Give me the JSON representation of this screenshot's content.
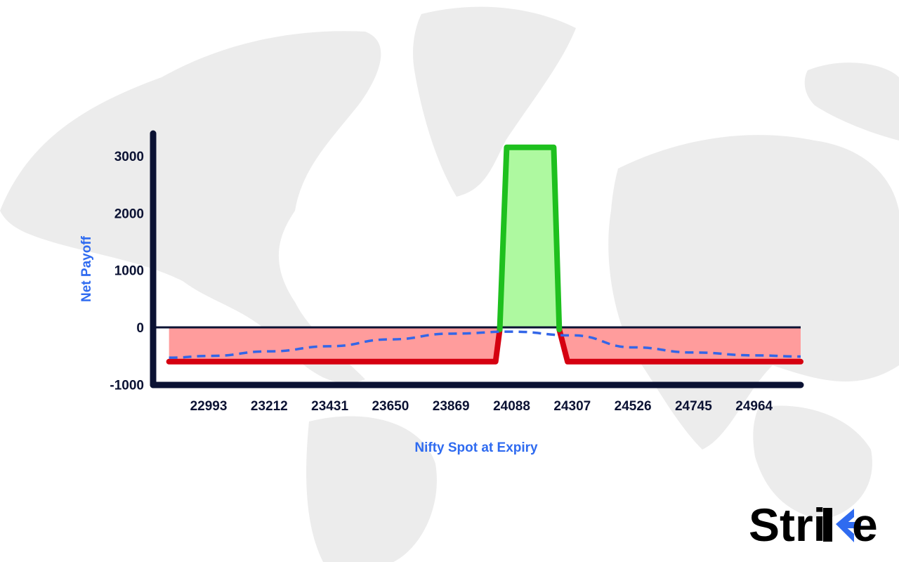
{
  "chart_data": {
    "type": "line",
    "title": "",
    "xlabel": "Nifty Spot at Expiry",
    "ylabel": "Net Payoff",
    "x_ticks": [
      22993,
      23212,
      23431,
      23650,
      23869,
      24088,
      24307,
      24526,
      24745,
      24964
    ],
    "y_ticks": [
      3000,
      2000,
      1000,
      0,
      -1000
    ],
    "xlim": [
      22850,
      25250
    ],
    "ylim": [
      -1000,
      3300
    ],
    "grid": false,
    "legend": "none",
    "series": [
      {
        "style": "solid",
        "colors": {
          "profit_line": "#1ec01e",
          "profit_fill": "#aef9a0",
          "loss_line": "#d50010",
          "loss_fill": "#ff9c9c"
        },
        "x": [
          22850,
          24030,
          24045,
          24070,
          24240,
          24260,
          24290,
          25250
        ],
        "y": [
          -600,
          -600,
          -100,
          3150,
          3150,
          0,
          -600,
          -600
        ]
      },
      {
        "style": "dashed",
        "color": "#3366e8",
        "x": [
          22850,
          23000,
          23212,
          23431,
          23650,
          23869,
          24088,
          24307,
          24526,
          24745,
          24964,
          25250
        ],
        "y": [
          -530,
          -500,
          -420,
          -330,
          -210,
          -110,
          -75,
          -140,
          -350,
          -440,
          -490,
          -510
        ]
      }
    ],
    "zero_line_color": "#0b1233",
    "axis_color": "#0b1233"
  },
  "brand": {
    "text_prefix": "Stri",
    "text_suffix": "e",
    "accent_color": "#2f6bf0"
  }
}
